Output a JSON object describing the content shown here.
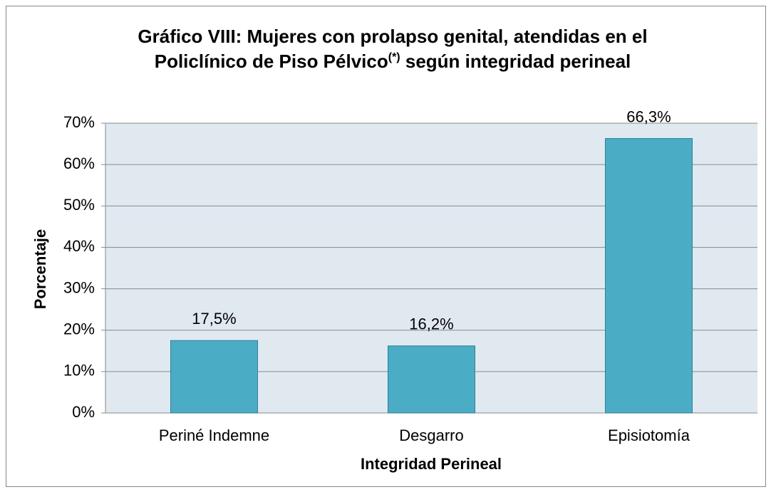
{
  "chart_data": {
    "type": "bar",
    "title": "Gráfico VIII: Mujeres con prolapso genital, atendidas en el Policlínico de Piso Pélvico",
    "title_superscript": "(*)",
    "title_continued": "según integridad perineal",
    "x_label": "Integridad Perineal",
    "y_label": "Porcentaje",
    "categories": [
      "Periné Indemne",
      "Desgarro",
      "Episiotomía"
    ],
    "values": [
      17.5,
      16.2,
      66.3
    ],
    "value_labels": [
      "17,5%",
      "16,2%",
      "66,3%"
    ],
    "color": "#4bacc6",
    "ylim": [
      0,
      70
    ],
    "yticks": [
      {
        "value": 0,
        "label": "0%"
      },
      {
        "value": 10,
        "label": "10%"
      },
      {
        "value": 20,
        "label": "20%"
      },
      {
        "value": 30,
        "label": "30%"
      },
      {
        "value": 40,
        "label": "40%"
      },
      {
        "value": 50,
        "label": "50%"
      },
      {
        "value": 60,
        "label": "60%"
      },
      {
        "value": 70,
        "label": "70%"
      }
    ],
    "grid": true
  }
}
